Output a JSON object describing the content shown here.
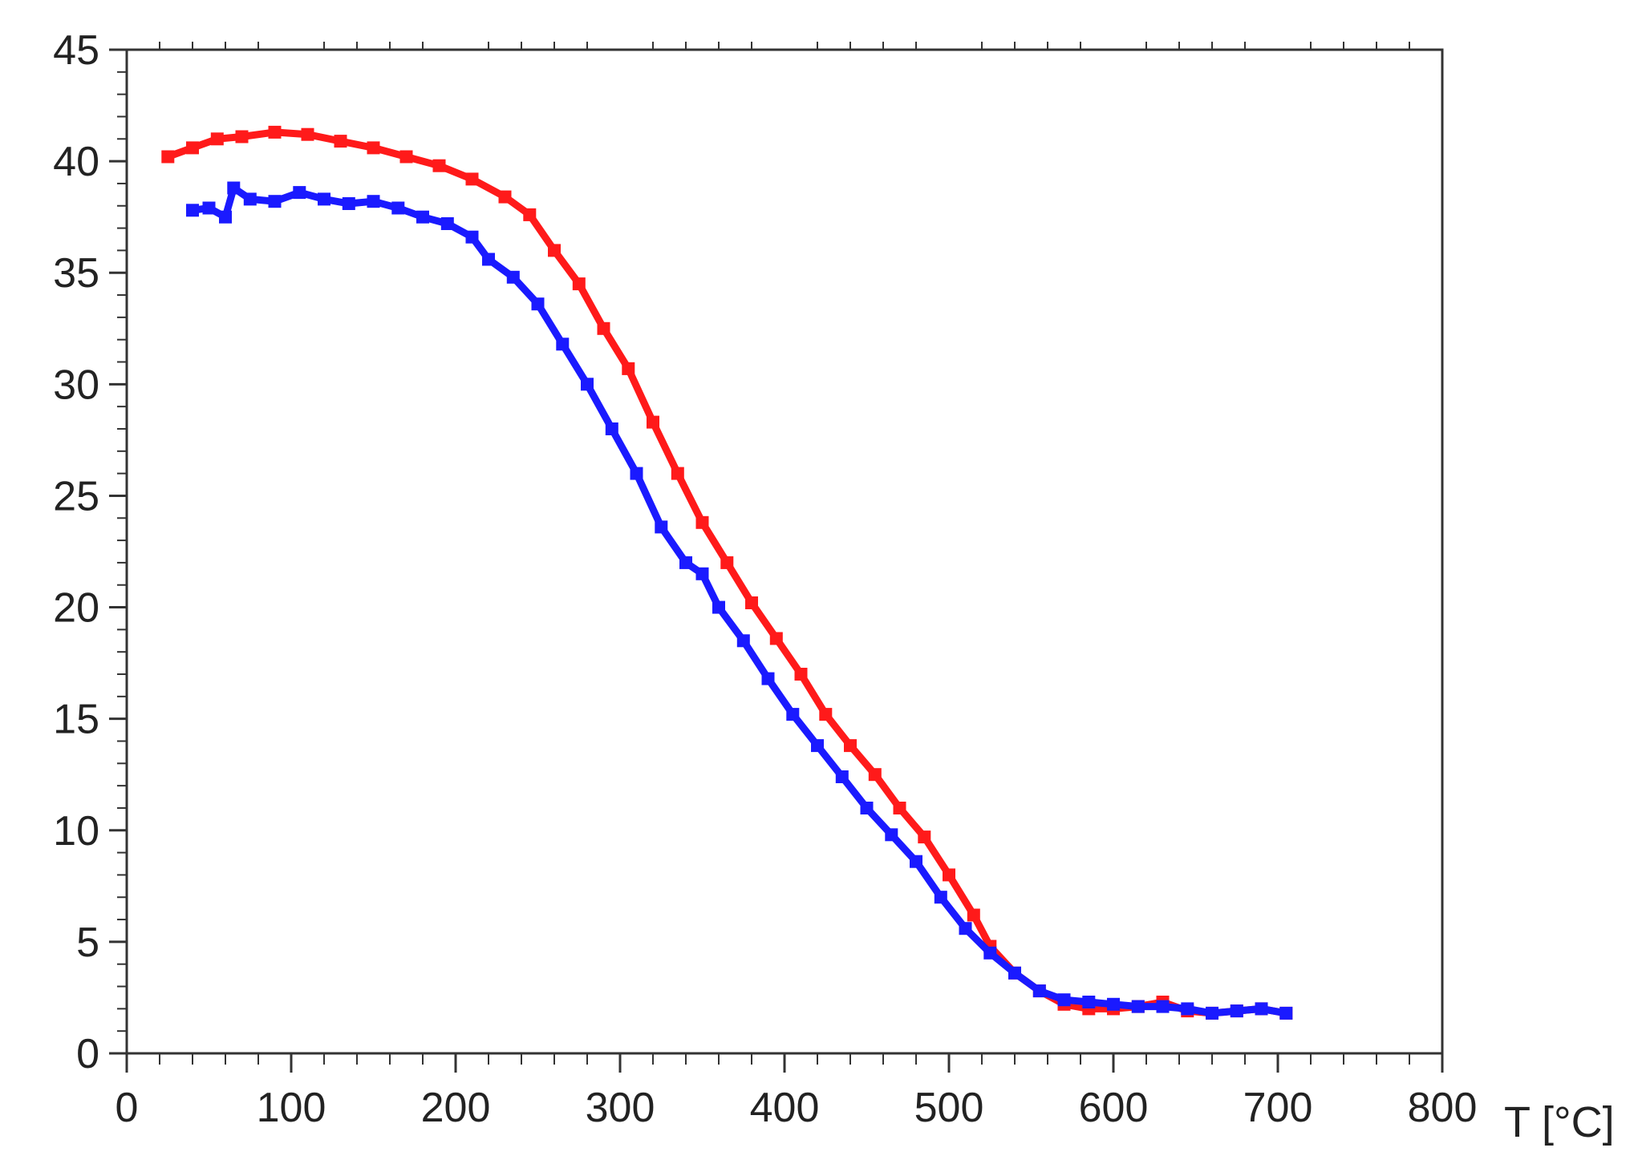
{
  "chart_data": {
    "type": "scatter",
    "title": "",
    "xlabel": "T [°C]",
    "ylabel": "",
    "xlim": [
      0,
      800
    ],
    "ylim": [
      0,
      45
    ],
    "x_ticks": [
      0,
      100,
      200,
      300,
      400,
      500,
      600,
      700,
      800
    ],
    "y_ticks": [
      0,
      5,
      10,
      15,
      20,
      25,
      30,
      35,
      40,
      45
    ],
    "grid": false,
    "legend": "none",
    "series": [
      {
        "color": "#ff1a1a",
        "x": [
          25,
          40,
          55,
          70,
          90,
          110,
          130,
          150,
          170,
          190,
          210,
          230,
          245,
          260,
          275,
          290,
          305,
          320,
          335,
          350,
          365,
          380,
          395,
          410,
          425,
          440,
          455,
          470,
          485,
          500,
          515,
          525,
          540,
          555,
          570,
          585,
          600,
          615,
          630,
          645,
          660,
          675,
          690,
          705
        ],
        "y": [
          40.2,
          40.6,
          41.0,
          41.1,
          41.3,
          41.2,
          40.9,
          40.6,
          40.2,
          39.8,
          39.2,
          38.4,
          37.6,
          36.0,
          34.5,
          32.5,
          30.7,
          28.3,
          26.0,
          23.8,
          22.0,
          20.2,
          18.6,
          17.0,
          15.2,
          13.8,
          12.5,
          11.0,
          9.7,
          8.0,
          6.2,
          4.8,
          3.6,
          2.8,
          2.2,
          2.0,
          2.0,
          2.1,
          2.3,
          1.9,
          1.8,
          1.9,
          2.0,
          1.8
        ]
      },
      {
        "color": "#1a1aff",
        "x": [
          40,
          50,
          60,
          65,
          75,
          90,
          105,
          120,
          135,
          150,
          165,
          180,
          195,
          210,
          220,
          235,
          250,
          265,
          280,
          295,
          310,
          325,
          340,
          350,
          360,
          375,
          390,
          405,
          420,
          435,
          450,
          465,
          480,
          495,
          510,
          525,
          540,
          555,
          570,
          585,
          600,
          615,
          630,
          645,
          660,
          675,
          690,
          705
        ],
        "y": [
          37.8,
          37.9,
          37.5,
          38.8,
          38.3,
          38.2,
          38.6,
          38.3,
          38.1,
          38.2,
          37.9,
          37.5,
          37.2,
          36.6,
          35.6,
          34.8,
          33.6,
          31.8,
          30.0,
          28.0,
          26.0,
          23.6,
          22.0,
          21.5,
          20.0,
          18.5,
          16.8,
          15.2,
          13.8,
          12.4,
          11.0,
          9.8,
          8.6,
          7.0,
          5.6,
          4.5,
          3.6,
          2.8,
          2.4,
          2.3,
          2.2,
          2.1,
          2.1,
          2.0,
          1.8,
          1.9,
          2.0,
          1.8
        ]
      }
    ]
  }
}
